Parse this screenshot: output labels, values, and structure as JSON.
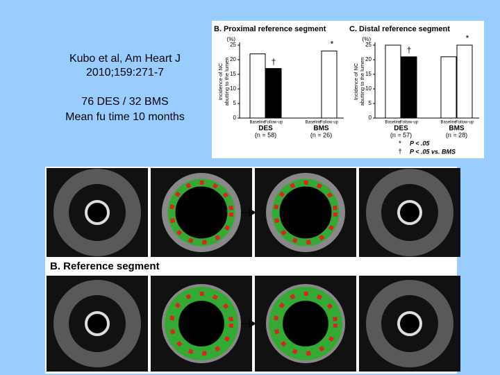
{
  "text": {
    "citation": [
      "Kubo et al, Am Heart J",
      "2010;159:271-7"
    ],
    "design": "76 DES / 32 BMS",
    "followup": "Mean fu time 10 months"
  },
  "figure": {
    "legend": [
      {
        "symbol": "*",
        "text": "P < .05"
      },
      {
        "symbol": "†",
        "text": "P < .05 vs. BMS"
      }
    ],
    "ivus_label": "B. Reference segment"
  },
  "chart_data": [
    {
      "type": "bar",
      "title": "B. Proximal reference segment",
      "y_label": [
        "Incidence of NC",
        "abutting to the lumen"
      ],
      "y_unit": "(%)",
      "categories": [
        "Baseline",
        "Follow-up",
        "Baseline",
        "Follow-up"
      ],
      "groups": [
        {
          "name": "DES",
          "n": "(n = 58)"
        },
        {
          "name": "BMS",
          "n": "(n = 26)"
        }
      ],
      "values": [
        22,
        17,
        0,
        23
      ],
      "colors": [
        "#ffffff",
        "#000000",
        "#ffffff",
        "#ffffff"
      ],
      "markers": [
        null,
        "†",
        null,
        "*"
      ],
      "ylim": [
        0,
        25
      ],
      "yticks": [
        0,
        5,
        10,
        15,
        20,
        25
      ]
    },
    {
      "type": "bar",
      "title": "C. Distal reference segment",
      "y_label": [
        "Incidence of NC",
        "abutting to the lumen"
      ],
      "y_unit": "(%)",
      "categories": [
        "Baseline",
        "Follow-up",
        "Baseline",
        "Follow-up"
      ],
      "groups": [
        {
          "name": "DES",
          "n": "(n = 57)"
        },
        {
          "name": "BMS",
          "n": "(n = 28)"
        }
      ],
      "values": [
        25,
        21,
        21,
        25
      ],
      "colors": [
        "#ffffff",
        "#000000",
        "#ffffff",
        "#ffffff"
      ],
      "markers": [
        null,
        "†",
        null,
        "*"
      ],
      "ylim": [
        0,
        25
      ],
      "yticks": [
        0,
        5,
        10,
        15,
        20,
        25
      ]
    }
  ]
}
